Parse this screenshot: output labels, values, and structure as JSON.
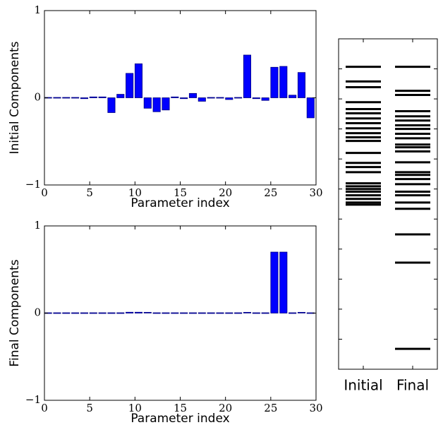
{
  "chart_data": [
    {
      "type": "bar",
      "ylabel": "Initial Components",
      "xlabel": "Parameter index",
      "color": "#0000ff",
      "x": [
        0,
        1,
        2,
        3,
        4,
        5,
        6,
        7,
        8,
        9,
        10,
        11,
        12,
        13,
        14,
        15,
        16,
        17,
        18,
        19,
        20,
        21,
        22,
        23,
        24,
        25,
        26,
        27,
        28,
        29
      ],
      "values": [
        0,
        0,
        0,
        0,
        -0.01,
        0.01,
        0.01,
        -0.17,
        0.04,
        0.28,
        0.39,
        -0.12,
        -0.16,
        -0.14,
        0.01,
        -0.01,
        0.05,
        -0.04,
        0,
        0,
        -0.02,
        0,
        0.49,
        -0.01,
        -0.03,
        0.35,
        0.36,
        0.03,
        0.29,
        -0.23
      ],
      "xlim": [
        0,
        30
      ],
      "xticks": [
        0,
        5,
        10,
        15,
        20,
        25,
        30
      ],
      "ylim": [
        -1,
        1
      ],
      "yticks": [
        {
          "value": -1,
          "label": "−1"
        },
        0,
        1
      ]
    },
    {
      "type": "bar",
      "ylabel": "Final Components",
      "xlabel": "Parameter index",
      "color": "#0000ff",
      "x": [
        0,
        1,
        2,
        3,
        4,
        5,
        6,
        7,
        8,
        9,
        10,
        11,
        12,
        13,
        14,
        15,
        16,
        17,
        18,
        19,
        20,
        21,
        22,
        23,
        24,
        25,
        26,
        27,
        28,
        29
      ],
      "values": [
        0,
        0,
        0,
        0,
        0,
        0,
        0,
        0,
        0,
        0.01,
        0.01,
        0.005,
        0,
        0,
        0,
        0,
        0,
        0,
        0,
        0,
        0,
        0,
        0.005,
        0,
        0,
        0.7,
        0.7,
        0,
        0.005,
        0
      ],
      "xlim": [
        0,
        30
      ],
      "xticks": [
        0,
        5,
        10,
        15,
        20,
        25,
        30
      ],
      "ylim": [
        -1,
        1
      ],
      "yticks": [
        {
          "value": -1,
          "label": "−1"
        },
        0,
        1
      ]
    },
    {
      "type": "eventplot",
      "color": "#000000",
      "series": [
        {
          "name": "Initial",
          "values": [
            10.07,
            9.58,
            9.39,
            8.89,
            8.66,
            8.52,
            8.35,
            8.19,
            8.02,
            7.86,
            7.72,
            7.6,
            7.2,
            6.87,
            6.73,
            6.56,
            6.19,
            6.09,
            6.0,
            5.91,
            5.79,
            5.67,
            5.55,
            5.48
          ]
        },
        {
          "name": "Final",
          "values": [
            10.07,
            9.27,
            9.13,
            8.59,
            8.42,
            8.28,
            8.12,
            8.0,
            7.84,
            7.69,
            7.48,
            7.39,
            7.25,
            6.89,
            6.56,
            6.47,
            6.33,
            6.16,
            5.91,
            5.79,
            5.55,
            5.34,
            4.49,
            3.55,
            0.68
          ]
        }
      ],
      "ylim": [
        0,
        11
      ],
      "yticks": [
        1,
        2,
        3,
        4,
        5,
        6,
        7,
        8,
        9,
        10
      ]
    }
  ]
}
